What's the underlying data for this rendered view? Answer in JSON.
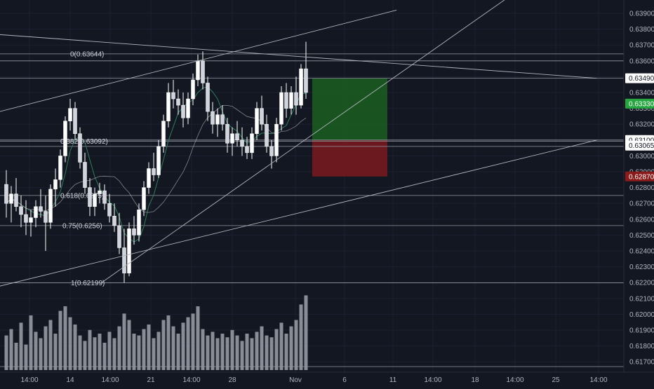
{
  "chart_data": {
    "type": "candlestick",
    "price_axis": {
      "range": [
        0.6165,
        0.6395
      ],
      "ticks": [
        "0.63900",
        "0.63800",
        "0.63700",
        "0.63600",
        "0.63500",
        "0.63400",
        "0.63300",
        "0.63200",
        "0.63100",
        "0.63000",
        "0.62900",
        "0.62800",
        "0.62700",
        "0.62600",
        "0.62500",
        "0.62400",
        "0.62300",
        "0.62200",
        "0.62100",
        "0.62000",
        "0.61900",
        "0.61800",
        "0.61700"
      ]
    },
    "time_axis": {
      "ticks": [
        "14:00",
        "14",
        "14:00",
        "21",
        "14:00",
        "28",
        "Nov",
        "6",
        "11",
        "14:00",
        "18",
        "14:00",
        "25",
        "14:00"
      ]
    },
    "price_badges": [
      {
        "text": "0.63490",
        "price": 0.6349,
        "bg": "#ffffff",
        "fg": "#131722"
      },
      {
        "text": "0.63330",
        "price": 0.6333,
        "bg": "#26a63f",
        "fg": "#ffffff"
      },
      {
        "text": "0.63100",
        "price": 0.631,
        "bg": "#ffffff",
        "fg": "#131722"
      },
      {
        "text": "0.63065",
        "price": 0.63065,
        "bg": "#ffffff",
        "fg": "#131722"
      },
      {
        "text": "0.62870",
        "price": 0.6287,
        "bg": "#8b1a1a",
        "fg": "#ffffff"
      }
    ],
    "fib_levels": [
      {
        "label": "0(0.63644)",
        "price": 0.63644
      },
      {
        "label": "0.382(0.63092)",
        "price": 0.63092
      },
      {
        "label": "0.618(0.6275)",
        "price": 0.6275
      },
      {
        "label": "0.75(0.6256)",
        "price": 0.6256
      },
      {
        "label": "1(0.62199)",
        "price": 0.62199
      }
    ],
    "position_box": {
      "entry": 0.631,
      "target": 0.6349,
      "stop": 0.6287,
      "profit_color": "#1b5e20",
      "loss_color": "#7b1a1f"
    },
    "candles": [
      [
        0.6282,
        0.6291,
        0.6261,
        0.627
      ],
      [
        0.627,
        0.6281,
        0.6258,
        0.6276
      ],
      [
        0.6276,
        0.6286,
        0.6265,
        0.6268
      ],
      [
        0.6268,
        0.6275,
        0.6255,
        0.6263
      ],
      [
        0.6263,
        0.6272,
        0.625,
        0.6258
      ],
      [
        0.6258,
        0.6266,
        0.6249,
        0.6261
      ],
      [
        0.6261,
        0.6272,
        0.6255,
        0.6268
      ],
      [
        0.6268,
        0.6279,
        0.6261,
        0.6265
      ],
      [
        0.6265,
        0.6275,
        0.624,
        0.6258
      ],
      [
        0.6258,
        0.6282,
        0.6254,
        0.6279
      ],
      [
        0.6279,
        0.6292,
        0.6268,
        0.6285
      ],
      [
        0.6285,
        0.6304,
        0.628,
        0.63
      ],
      [
        0.63,
        0.6325,
        0.6296,
        0.6322
      ],
      [
        0.6322,
        0.6336,
        0.6316,
        0.633
      ],
      [
        0.633,
        0.6334,
        0.631,
        0.6314
      ],
      [
        0.6314,
        0.6318,
        0.6292,
        0.6296
      ],
      [
        0.6296,
        0.6302,
        0.6276,
        0.628
      ],
      [
        0.628,
        0.6286,
        0.6262,
        0.6268
      ],
      [
        0.6268,
        0.628,
        0.6262,
        0.6276
      ],
      [
        0.6276,
        0.6283,
        0.627,
        0.6278
      ],
      [
        0.6278,
        0.6282,
        0.6266,
        0.627
      ],
      [
        0.627,
        0.6276,
        0.6258,
        0.6262
      ],
      [
        0.6262,
        0.627,
        0.6252,
        0.6256
      ],
      [
        0.6256,
        0.6264,
        0.6238,
        0.6242
      ],
      [
        0.6242,
        0.6254,
        0.622,
        0.6226
      ],
      [
        0.6226,
        0.6258,
        0.6224,
        0.6254
      ],
      [
        0.6254,
        0.6262,
        0.6244,
        0.625
      ],
      [
        0.625,
        0.627,
        0.6246,
        0.6266
      ],
      [
        0.6266,
        0.6284,
        0.6262,
        0.628
      ],
      [
        0.628,
        0.6296,
        0.6276,
        0.6292
      ],
      [
        0.6292,
        0.6302,
        0.6284,
        0.6288
      ],
      [
        0.6288,
        0.631,
        0.6286,
        0.6306
      ],
      [
        0.6306,
        0.6326,
        0.6302,
        0.6322
      ],
      [
        0.6322,
        0.6346,
        0.6318,
        0.634
      ],
      [
        0.634,
        0.6348,
        0.633,
        0.6336
      ],
      [
        0.6336,
        0.6342,
        0.6326,
        0.6332
      ],
      [
        0.6332,
        0.634,
        0.6318,
        0.6324
      ],
      [
        0.6324,
        0.634,
        0.632,
        0.6336
      ],
      [
        0.6336,
        0.6352,
        0.6332,
        0.6348
      ],
      [
        0.6348,
        0.6364,
        0.6344,
        0.636
      ],
      [
        0.636,
        0.6366,
        0.6342,
        0.6346
      ],
      [
        0.6346,
        0.635,
        0.6322,
        0.6328
      ],
      [
        0.6328,
        0.6334,
        0.6314,
        0.632
      ],
      [
        0.632,
        0.633,
        0.6312,
        0.6326
      ],
      [
        0.6326,
        0.6332,
        0.6316,
        0.632
      ],
      [
        0.632,
        0.6324,
        0.6302,
        0.6308
      ],
      [
        0.6308,
        0.6318,
        0.63,
        0.6314
      ],
      [
        0.6314,
        0.6322,
        0.6306,
        0.631
      ],
      [
        0.631,
        0.6318,
        0.63,
        0.6306
      ],
      [
        0.6306,
        0.6312,
        0.6298,
        0.6302
      ],
      [
        0.6302,
        0.6318,
        0.6298,
        0.6314
      ],
      [
        0.6314,
        0.6334,
        0.631,
        0.633
      ],
      [
        0.633,
        0.6338,
        0.6316,
        0.632
      ],
      [
        0.632,
        0.6326,
        0.6302,
        0.6306
      ],
      [
        0.6306,
        0.631,
        0.6292,
        0.63
      ],
      [
        0.63,
        0.6324,
        0.6296,
        0.632
      ],
      [
        0.632,
        0.6344,
        0.6316,
        0.634
      ],
      [
        0.634,
        0.6346,
        0.6324,
        0.633
      ],
      [
        0.633,
        0.6344,
        0.6326,
        0.634
      ],
      [
        0.634,
        0.635,
        0.6326,
        0.6332
      ],
      [
        0.6332,
        0.6358,
        0.633,
        0.6355
      ],
      [
        0.6355,
        0.6372,
        0.6336,
        0.634
      ]
    ],
    "volumes": [
      38,
      45,
      30,
      52,
      28,
      60,
      42,
      35,
      48,
      55,
      40,
      65,
      70,
      58,
      50,
      38,
      32,
      44,
      36,
      40,
      30,
      42,
      35,
      48,
      62,
      55,
      40,
      38,
      45,
      50,
      35,
      42,
      55,
      60,
      48,
      40,
      52,
      58,
      62,
      70,
      45,
      38,
      42,
      35,
      40,
      36,
      44,
      38,
      32,
      40,
      35,
      42,
      48,
      38,
      36,
      45,
      52,
      40,
      48,
      55,
      72,
      82
    ],
    "trend_lines": [
      {
        "from": [
          -0.05,
          0.6323
        ],
        "to": [
          0.6357,
          0.6392
        ]
      },
      {
        "from": [
          -0.05,
          0.6213
        ],
        "to": [
          0.957,
          0.631
        ]
      },
      {
        "from": [
          -0.05,
          0.6378
        ],
        "to": [
          0.957,
          0.6349
        ]
      },
      {
        "from": [
          0.1628,
          0.622
        ],
        "to": [
          0.8143,
          0.64
        ]
      }
    ]
  }
}
